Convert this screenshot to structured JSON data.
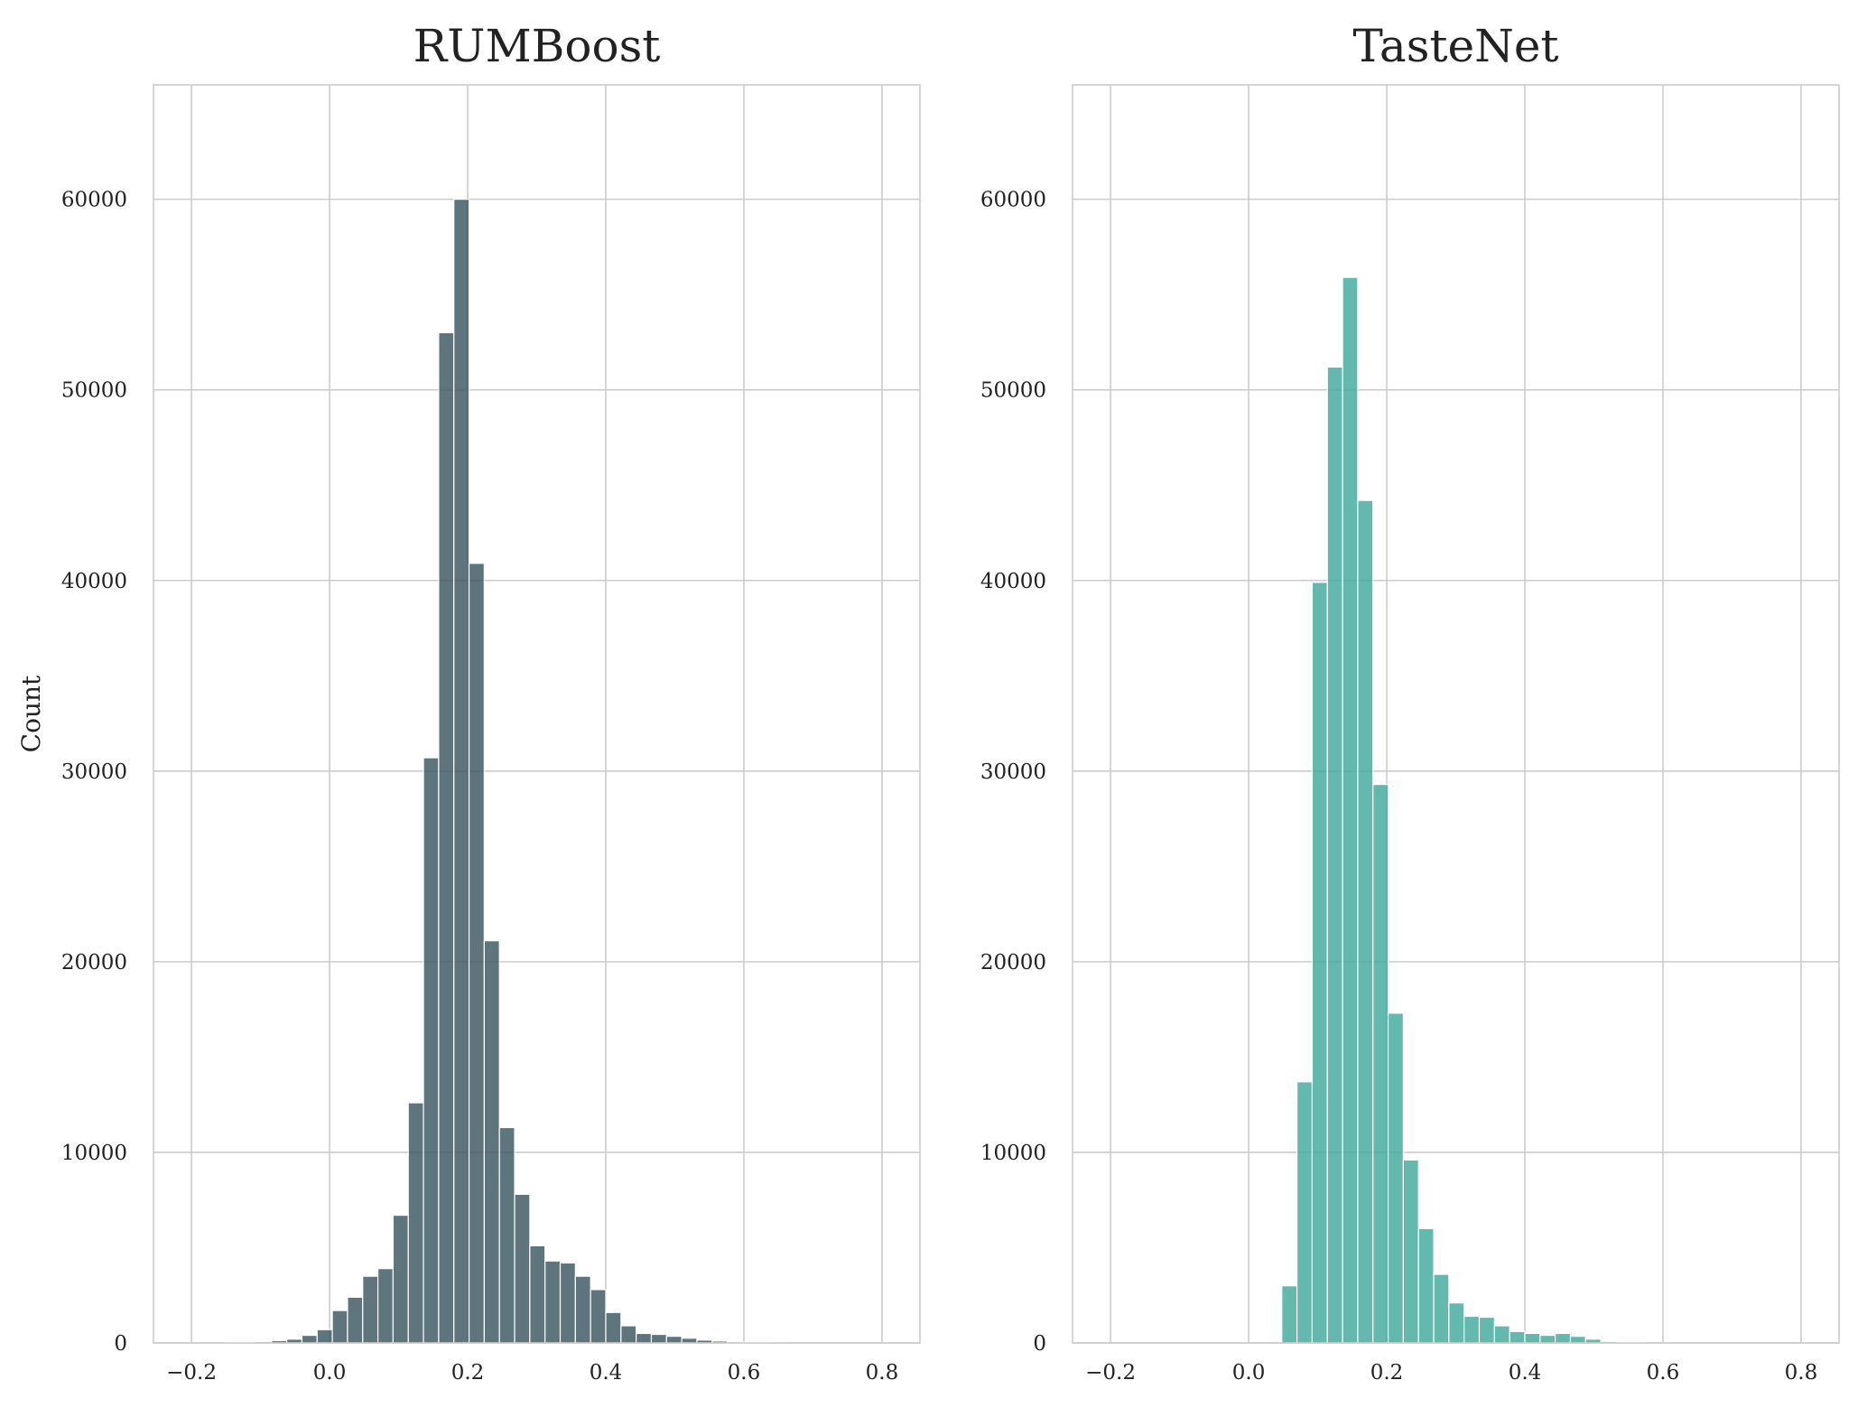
{
  "chart_data": [
    {
      "type": "bar",
      "title": "RUMBoost",
      "xlabel": "",
      "ylabel": "Count",
      "xlim": [
        -0.255,
        0.855
      ],
      "ylim": [
        0,
        66000
      ],
      "xticks": [
        -0.2,
        0.0,
        0.2,
        0.4,
        0.6,
        0.8
      ],
      "xtick_labels": [
        "−0.2",
        "0.0",
        "0.2",
        "0.4",
        "0.6",
        "0.8"
      ],
      "yticks": [
        0,
        10000,
        20000,
        30000,
        40000,
        50000,
        60000
      ],
      "ytick_labels": [
        "0",
        "10000",
        "20000",
        "30000",
        "40000",
        "50000",
        "60000"
      ],
      "grid": true,
      "color": "#37535e",
      "bin_width": 0.022,
      "bin_left": [
        -0.15,
        -0.128,
        -0.106,
        -0.084,
        -0.062,
        -0.04,
        -0.018,
        0.004,
        0.026,
        0.048,
        0.07,
        0.092,
        0.114,
        0.136,
        0.158,
        0.18,
        0.202,
        0.224,
        0.246,
        0.268,
        0.29,
        0.312,
        0.334,
        0.356,
        0.378,
        0.4,
        0.422,
        0.444,
        0.466,
        0.488,
        0.51,
        0.532,
        0.554,
        0.576,
        0.598,
        0.62,
        0.642
      ],
      "values": [
        20,
        40,
        70,
        120,
        200,
        400,
        700,
        1700,
        2400,
        3500,
        3900,
        6700,
        12600,
        30700,
        53000,
        60000,
        40900,
        21100,
        11300,
        7800,
        5100,
        4300,
        4200,
        3500,
        2800,
        1600,
        900,
        500,
        450,
        350,
        250,
        150,
        100,
        60,
        40,
        20,
        10
      ]
    },
    {
      "type": "bar",
      "title": "TasteNet",
      "xlabel": "",
      "ylabel": "",
      "xlim": [
        -0.255,
        0.855
      ],
      "ylim": [
        0,
        66000
      ],
      "xticks": [
        -0.2,
        0.0,
        0.2,
        0.4,
        0.6,
        0.8
      ],
      "xtick_labels": [
        "−0.2",
        "0.0",
        "0.2",
        "0.4",
        "0.6",
        "0.8"
      ],
      "yticks": [
        0,
        10000,
        20000,
        30000,
        40000,
        50000,
        60000
      ],
      "ytick_labels": [
        "0",
        "10000",
        "20000",
        "30000",
        "40000",
        "50000",
        "60000"
      ],
      "grid": true,
      "color": "#3da89a",
      "bin_width": 0.022,
      "bin_left": [
        0.048,
        0.07,
        0.092,
        0.114,
        0.136,
        0.158,
        0.18,
        0.202,
        0.224,
        0.246,
        0.268,
        0.29,
        0.312,
        0.334,
        0.356,
        0.378,
        0.4,
        0.422,
        0.444,
        0.466,
        0.488,
        0.51,
        0.532,
        0.554
      ],
      "values": [
        3000,
        13700,
        39900,
        51200,
        55900,
        44200,
        29300,
        17300,
        9600,
        6000,
        3600,
        2100,
        1400,
        1350,
        900,
        600,
        500,
        400,
        500,
        350,
        200,
        80,
        40,
        20
      ]
    }
  ]
}
